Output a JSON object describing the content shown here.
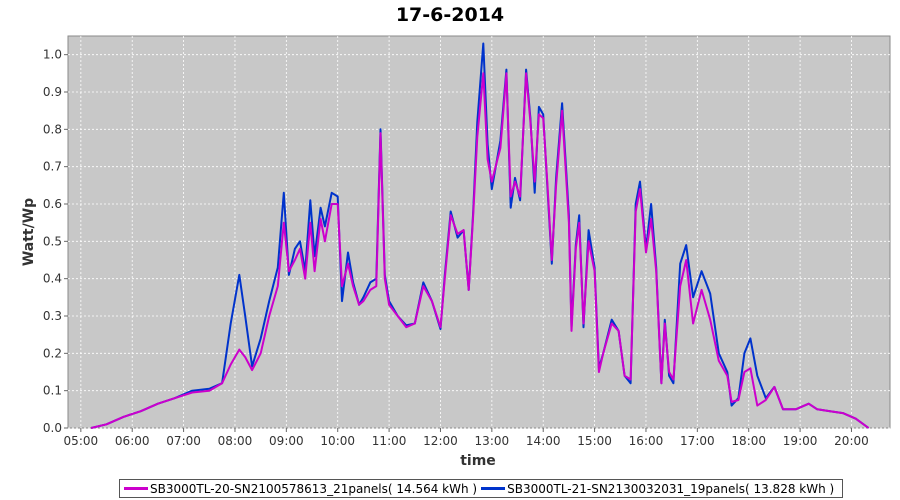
{
  "chart_data": {
    "type": "line",
    "title": "17-6-2014",
    "xlabel": "time",
    "ylabel": "Watt/Wp",
    "x_ticks": [
      "05:00",
      "06:00",
      "07:00",
      "08:00",
      "09:00",
      "10:00",
      "11:00",
      "12:00",
      "13:00",
      "14:00",
      "15:00",
      "16:00",
      "17:00",
      "18:00",
      "19:00",
      "20:00"
    ],
    "y_ticks": [
      "0.0",
      "0.1",
      "0.2",
      "0.3",
      "0.4",
      "0.5",
      "0.6",
      "0.7",
      "0.8",
      "0.9",
      "1.0"
    ],
    "xlim": [
      "04:45",
      "20:45"
    ],
    "ylim": [
      0,
      1.05
    ],
    "grid": true,
    "legend_position": "bottom",
    "series": [
      {
        "name": "SB3000TL-20-SN2100578613_21panels( 14.564 kWh )",
        "color": "#cc00cc",
        "points": [
          [
            "05:12",
            0.0
          ],
          [
            "05:30",
            0.01
          ],
          [
            "05:50",
            0.03
          ],
          [
            "06:10",
            0.045
          ],
          [
            "06:30",
            0.065
          ],
          [
            "06:50",
            0.08
          ],
          [
            "07:10",
            0.095
          ],
          [
            "07:30",
            0.1
          ],
          [
            "07:45",
            0.12
          ],
          [
            "07:55",
            0.17
          ],
          [
            "08:05",
            0.21
          ],
          [
            "08:12",
            0.19
          ],
          [
            "08:20",
            0.155
          ],
          [
            "08:30",
            0.2
          ],
          [
            "08:40",
            0.3
          ],
          [
            "08:50",
            0.38
          ],
          [
            "08:57",
            0.55
          ],
          [
            "09:03",
            0.42
          ],
          [
            "09:10",
            0.45
          ],
          [
            "09:16",
            0.48
          ],
          [
            "09:22",
            0.4
          ],
          [
            "09:28",
            0.55
          ],
          [
            "09:33",
            0.42
          ],
          [
            "09:40",
            0.56
          ],
          [
            "09:45",
            0.5
          ],
          [
            "09:53",
            0.6
          ],
          [
            "10:00",
            0.6
          ],
          [
            "10:05",
            0.38
          ],
          [
            "10:12",
            0.44
          ],
          [
            "10:18",
            0.38
          ],
          [
            "10:25",
            0.33
          ],
          [
            "10:30",
            0.34
          ],
          [
            "10:38",
            0.37
          ],
          [
            "10:45",
            0.38
          ],
          [
            "10:50",
            0.79
          ],
          [
            "10:55",
            0.4
          ],
          [
            "11:00",
            0.33
          ],
          [
            "11:10",
            0.3
          ],
          [
            "11:20",
            0.27
          ],
          [
            "11:30",
            0.28
          ],
          [
            "11:40",
            0.38
          ],
          [
            "11:50",
            0.34
          ],
          [
            "12:00",
            0.27
          ],
          [
            "12:05",
            0.4
          ],
          [
            "12:12",
            0.57
          ],
          [
            "12:20",
            0.52
          ],
          [
            "12:27",
            0.53
          ],
          [
            "12:33",
            0.37
          ],
          [
            "12:38",
            0.56
          ],
          [
            "12:43",
            0.78
          ],
          [
            "12:50",
            0.95
          ],
          [
            "12:55",
            0.72
          ],
          [
            "13:00",
            0.66
          ],
          [
            "13:10",
            0.75
          ],
          [
            "13:17",
            0.95
          ],
          [
            "13:22",
            0.62
          ],
          [
            "13:27",
            0.66
          ],
          [
            "13:33",
            0.62
          ],
          [
            "13:40",
            0.95
          ],
          [
            "13:45",
            0.82
          ],
          [
            "13:50",
            0.66
          ],
          [
            "13:55",
            0.84
          ],
          [
            "14:00",
            0.83
          ],
          [
            "14:05",
            0.65
          ],
          [
            "14:10",
            0.45
          ],
          [
            "14:15",
            0.65
          ],
          [
            "14:22",
            0.85
          ],
          [
            "14:30",
            0.55
          ],
          [
            "14:33",
            0.26
          ],
          [
            "14:38",
            0.48
          ],
          [
            "14:42",
            0.55
          ],
          [
            "14:47",
            0.28
          ],
          [
            "14:53",
            0.5
          ],
          [
            "15:00",
            0.42
          ],
          [
            "15:05",
            0.15
          ],
          [
            "15:10",
            0.2
          ],
          [
            "15:20",
            0.28
          ],
          [
            "15:28",
            0.26
          ],
          [
            "15:35",
            0.14
          ],
          [
            "15:42",
            0.13
          ],
          [
            "15:48",
            0.58
          ],
          [
            "15:53",
            0.64
          ],
          [
            "16:00",
            0.47
          ],
          [
            "16:06",
            0.56
          ],
          [
            "16:12",
            0.42
          ],
          [
            "16:18",
            0.12
          ],
          [
            "16:22",
            0.28
          ],
          [
            "16:27",
            0.15
          ],
          [
            "16:32",
            0.13
          ],
          [
            "16:40",
            0.38
          ],
          [
            "16:47",
            0.45
          ],
          [
            "16:55",
            0.28
          ],
          [
            "17:05",
            0.37
          ],
          [
            "17:15",
            0.29
          ],
          [
            "17:25",
            0.18
          ],
          [
            "17:35",
            0.14
          ],
          [
            "17:40",
            0.07
          ],
          [
            "17:48",
            0.075
          ],
          [
            "17:55",
            0.15
          ],
          [
            "18:02",
            0.16
          ],
          [
            "18:10",
            0.06
          ],
          [
            "18:20",
            0.075
          ],
          [
            "18:30",
            0.11
          ],
          [
            "18:40",
            0.05
          ],
          [
            "18:55",
            0.05
          ],
          [
            "19:10",
            0.065
          ],
          [
            "19:20",
            0.05
          ],
          [
            "19:35",
            0.045
          ],
          [
            "19:50",
            0.04
          ],
          [
            "20:05",
            0.025
          ],
          [
            "20:20",
            0.0
          ]
        ]
      },
      {
        "name": "SB3000TL-21-SN2130032031_19panels( 13.828 kWh )",
        "color": "#0033cc",
        "points": [
          [
            "05:12",
            0.0
          ],
          [
            "05:30",
            0.01
          ],
          [
            "05:50",
            0.03
          ],
          [
            "06:10",
            0.045
          ],
          [
            "06:30",
            0.065
          ],
          [
            "06:50",
            0.08
          ],
          [
            "07:10",
            0.1
          ],
          [
            "07:30",
            0.105
          ],
          [
            "07:45",
            0.12
          ],
          [
            "07:55",
            0.28
          ],
          [
            "08:05",
            0.41
          ],
          [
            "08:12",
            0.3
          ],
          [
            "08:20",
            0.165
          ],
          [
            "08:30",
            0.24
          ],
          [
            "08:40",
            0.34
          ],
          [
            "08:50",
            0.43
          ],
          [
            "08:57",
            0.63
          ],
          [
            "09:03",
            0.41
          ],
          [
            "09:10",
            0.48
          ],
          [
            "09:16",
            0.5
          ],
          [
            "09:22",
            0.42
          ],
          [
            "09:28",
            0.61
          ],
          [
            "09:33",
            0.46
          ],
          [
            "09:40",
            0.59
          ],
          [
            "09:45",
            0.54
          ],
          [
            "09:53",
            0.63
          ],
          [
            "10:00",
            0.62
          ],
          [
            "10:05",
            0.34
          ],
          [
            "10:12",
            0.47
          ],
          [
            "10:18",
            0.39
          ],
          [
            "10:25",
            0.33
          ],
          [
            "10:30",
            0.35
          ],
          [
            "10:38",
            0.39
          ],
          [
            "10:45",
            0.4
          ],
          [
            "10:50",
            0.8
          ],
          [
            "10:55",
            0.41
          ],
          [
            "11:00",
            0.34
          ],
          [
            "11:10",
            0.3
          ],
          [
            "11:20",
            0.275
          ],
          [
            "11:30",
            0.28
          ],
          [
            "11:40",
            0.39
          ],
          [
            "11:50",
            0.34
          ],
          [
            "12:00",
            0.265
          ],
          [
            "12:05",
            0.41
          ],
          [
            "12:12",
            0.58
          ],
          [
            "12:20",
            0.51
          ],
          [
            "12:27",
            0.53
          ],
          [
            "12:33",
            0.37
          ],
          [
            "12:38",
            0.57
          ],
          [
            "12:43",
            0.82
          ],
          [
            "12:50",
            1.03
          ],
          [
            "12:55",
            0.76
          ],
          [
            "13:00",
            0.64
          ],
          [
            "13:10",
            0.77
          ],
          [
            "13:17",
            0.96
          ],
          [
            "13:22",
            0.59
          ],
          [
            "13:27",
            0.67
          ],
          [
            "13:33",
            0.61
          ],
          [
            "13:40",
            0.96
          ],
          [
            "13:45",
            0.83
          ],
          [
            "13:50",
            0.63
          ],
          [
            "13:55",
            0.86
          ],
          [
            "14:00",
            0.84
          ],
          [
            "14:05",
            0.64
          ],
          [
            "14:10",
            0.44
          ],
          [
            "14:15",
            0.67
          ],
          [
            "14:22",
            0.87
          ],
          [
            "14:30",
            0.57
          ],
          [
            "14:33",
            0.27
          ],
          [
            "14:38",
            0.49
          ],
          [
            "14:42",
            0.57
          ],
          [
            "14:47",
            0.27
          ],
          [
            "14:53",
            0.53
          ],
          [
            "15:00",
            0.43
          ],
          [
            "15:05",
            0.16
          ],
          [
            "15:10",
            0.2
          ],
          [
            "15:20",
            0.29
          ],
          [
            "15:28",
            0.26
          ],
          [
            "15:35",
            0.14
          ],
          [
            "15:42",
            0.12
          ],
          [
            "15:48",
            0.6
          ],
          [
            "15:53",
            0.66
          ],
          [
            "16:00",
            0.48
          ],
          [
            "16:06",
            0.6
          ],
          [
            "16:12",
            0.43
          ],
          [
            "16:18",
            0.12
          ],
          [
            "16:22",
            0.29
          ],
          [
            "16:27",
            0.14
          ],
          [
            "16:32",
            0.12
          ],
          [
            "16:40",
            0.44
          ],
          [
            "16:47",
            0.49
          ],
          [
            "16:55",
            0.35
          ],
          [
            "17:05",
            0.42
          ],
          [
            "17:15",
            0.36
          ],
          [
            "17:25",
            0.2
          ],
          [
            "17:35",
            0.15
          ],
          [
            "17:40",
            0.06
          ],
          [
            "17:48",
            0.08
          ],
          [
            "17:55",
            0.2
          ],
          [
            "18:02",
            0.24
          ],
          [
            "18:10",
            0.14
          ],
          [
            "18:20",
            0.08
          ],
          [
            "18:30",
            0.11
          ],
          [
            "18:40",
            0.05
          ],
          [
            "18:55",
            0.05
          ],
          [
            "19:10",
            0.065
          ],
          [
            "19:20",
            0.05
          ],
          [
            "19:35",
            0.045
          ],
          [
            "19:50",
            0.04
          ],
          [
            "20:05",
            0.025
          ],
          [
            "20:20",
            0.0
          ]
        ]
      }
    ]
  }
}
